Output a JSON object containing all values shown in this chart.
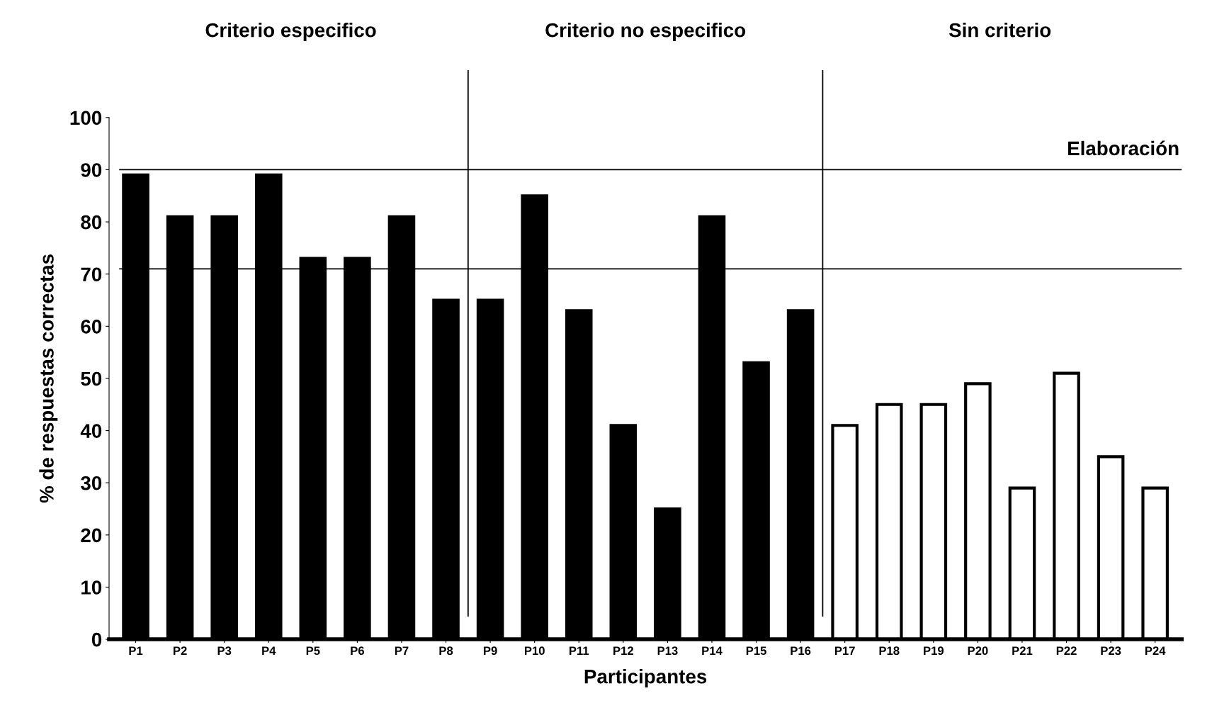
{
  "chart_data": {
    "type": "bar",
    "xlabel": "Participantes",
    "ylabel": "% de respuestas correctas",
    "categories": [
      "P1",
      "P2",
      "P3",
      "P4",
      "P5",
      "P6",
      "P7",
      "P8",
      "P9",
      "P10",
      "P11",
      "P12",
      "P13",
      "P14",
      "P15",
      "P16",
      "P17",
      "P18",
      "P19",
      "P20",
      "P21",
      "P22",
      "P23",
      "P24"
    ],
    "values": [
      89,
      81,
      81,
      89,
      73,
      73,
      81,
      65,
      65,
      85,
      63,
      41,
      25,
      81,
      53,
      63,
      41,
      45,
      45,
      49,
      29,
      51,
      35,
      29
    ],
    "colors": [
      "#000000",
      "#000000",
      "#000000",
      "#000000",
      "#000000",
      "#000000",
      "#000000",
      "#000000",
      "#000000",
      "#000000",
      "#000000",
      "#000000",
      "#000000",
      "#000000",
      "#000000",
      "#000000",
      "#ffffff",
      "#ffffff",
      "#ffffff",
      "#ffffff",
      "#ffffff",
      "#ffffff",
      "#ffffff",
      "#ffffff"
    ],
    "ylim": [
      0,
      100
    ],
    "yticks": [
      0,
      10,
      20,
      30,
      40,
      50,
      60,
      70,
      80,
      90,
      100
    ],
    "ref_lines": [
      {
        "axis": "y",
        "value": 90,
        "label": "Elaboración",
        "color": "#000000"
      },
      {
        "axis": "y",
        "value": 71,
        "color": "#000000"
      }
    ],
    "annotations": [
      "Criterio especifico",
      "Criterio no especifico",
      "Sin criterio"
    ],
    "grid": false,
    "legend": false
  }
}
